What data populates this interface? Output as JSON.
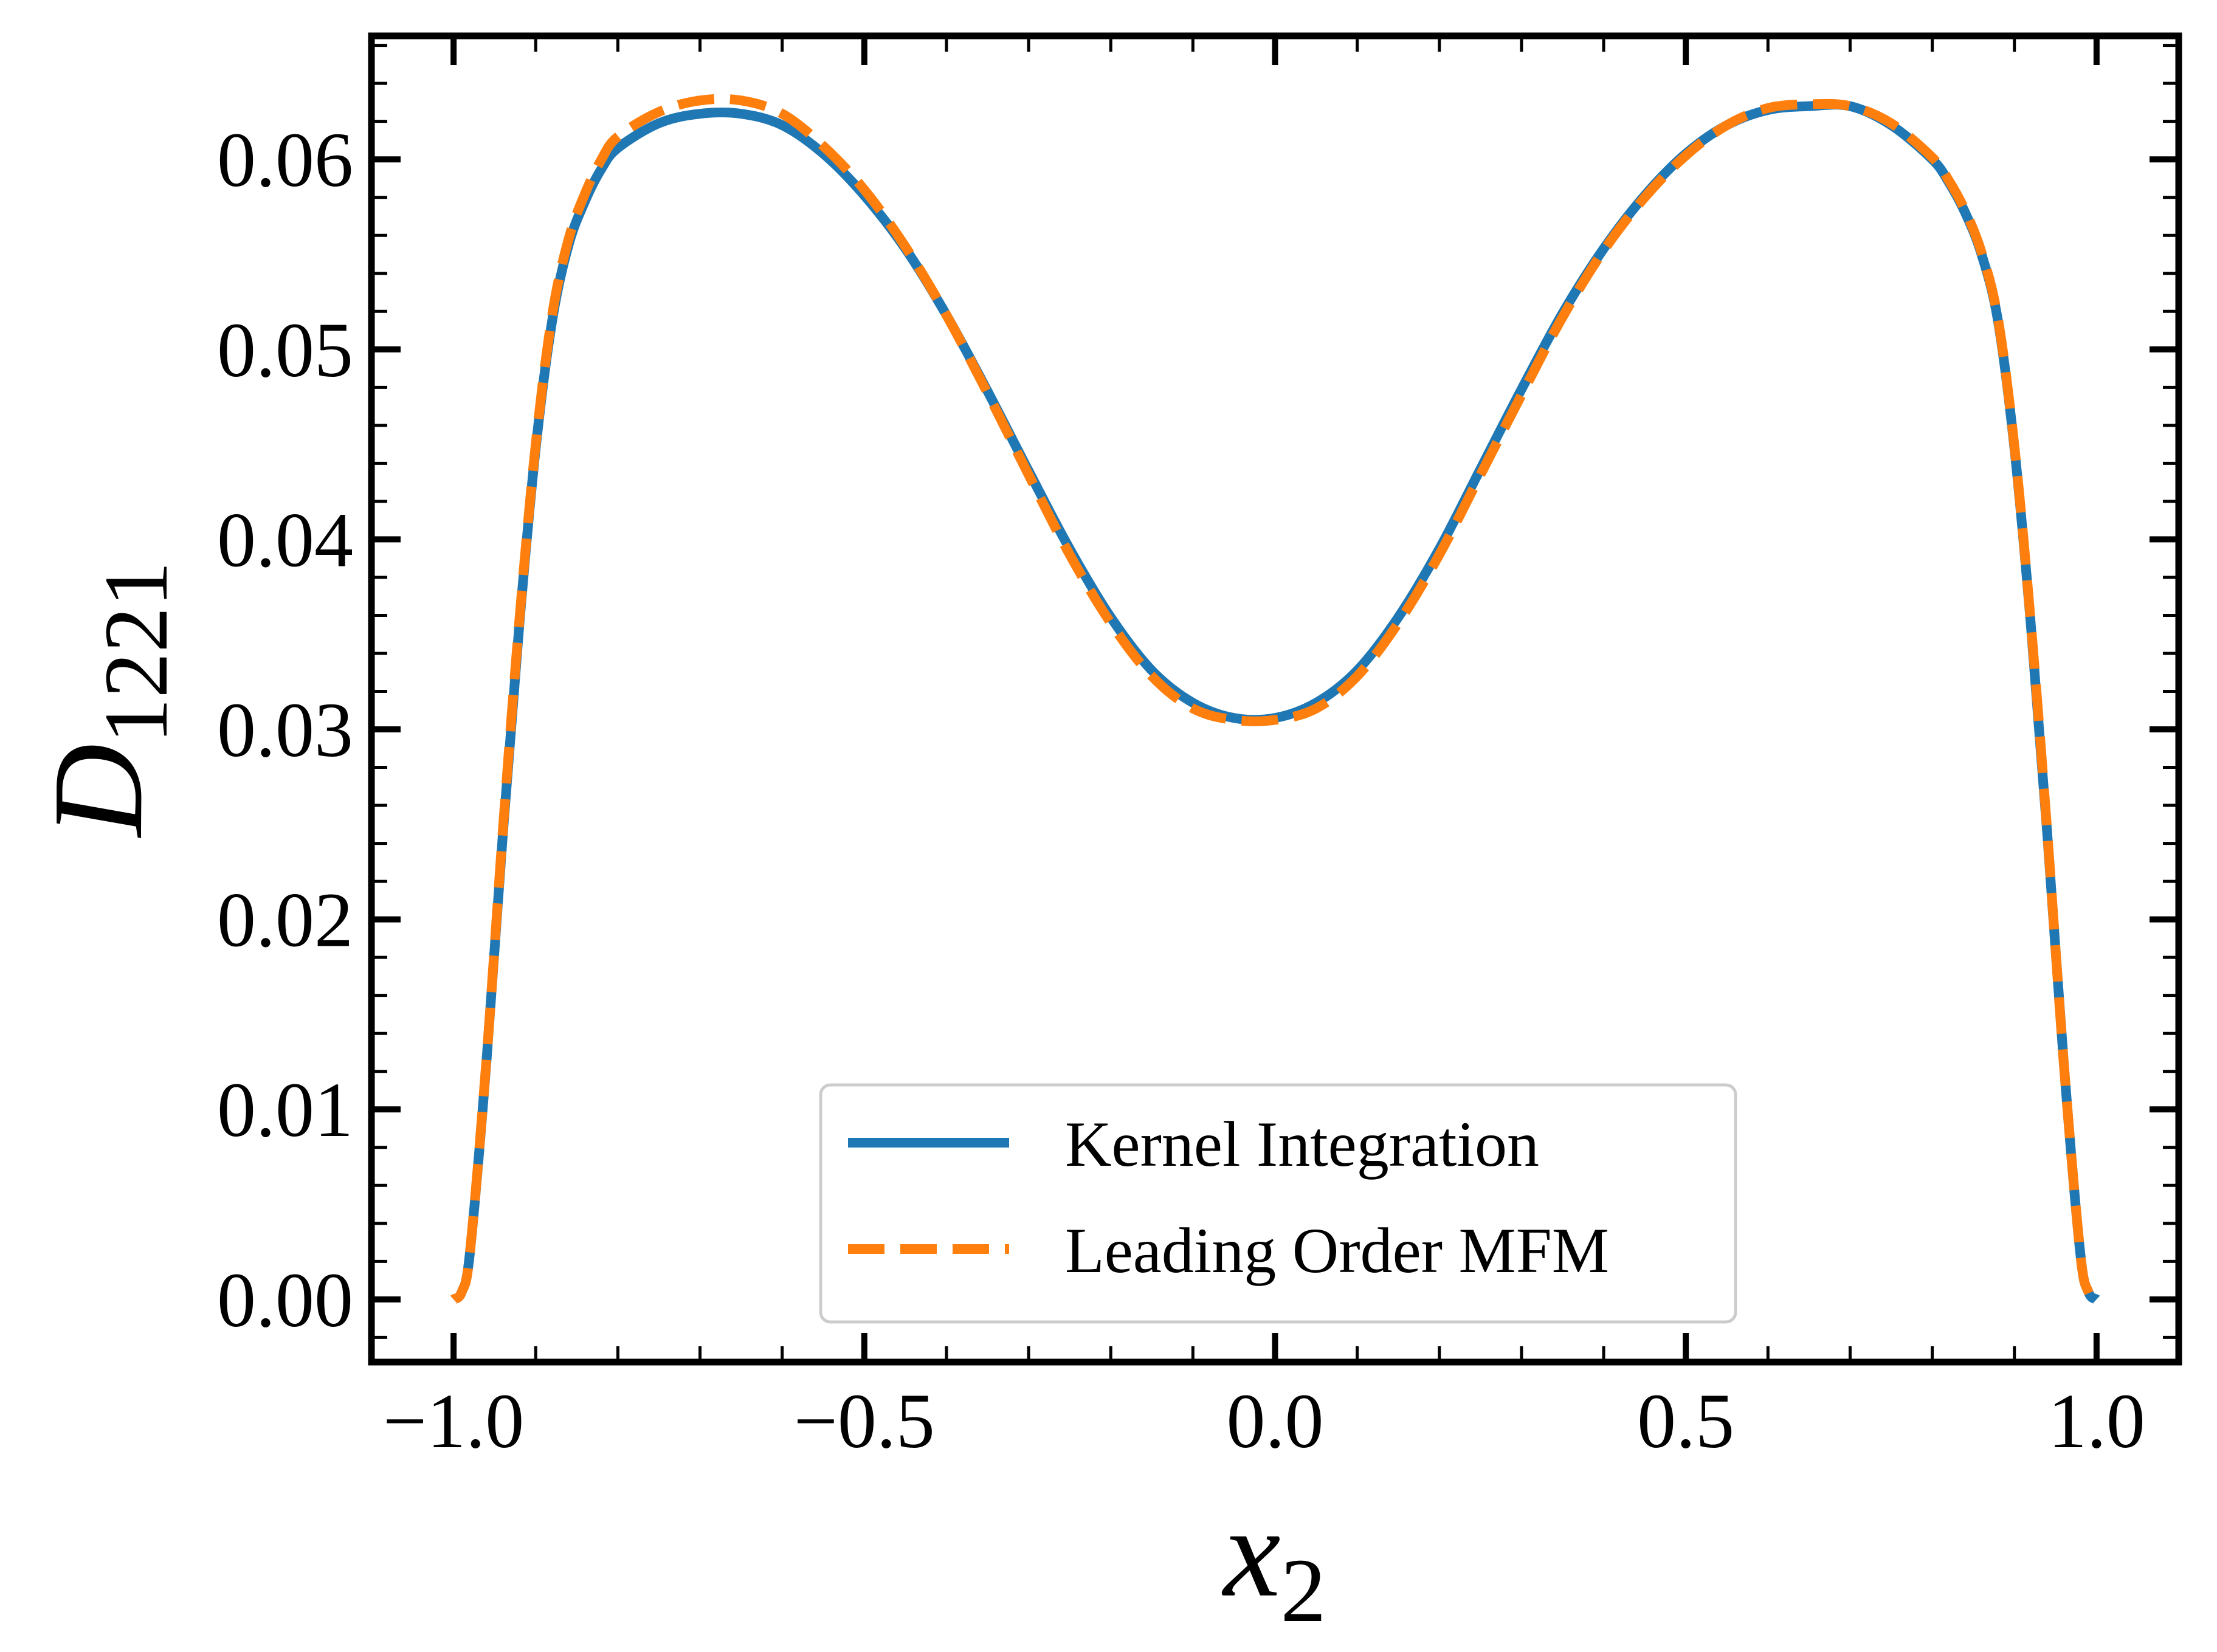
{
  "chart_data": {
    "type": "line",
    "title": "",
    "xlabel": {
      "base": "x",
      "subscript": "2"
    },
    "ylabel": {
      "base": "D",
      "subscript": "1221"
    },
    "xlim": [
      -1.1,
      1.1
    ],
    "ylim": [
      -0.0033,
      0.0665
    ],
    "xticks": [
      -1.0,
      -0.5,
      0.0,
      0.5,
      1.0
    ],
    "xtick_labels": [
      "−1.0",
      "−0.5",
      "0.0",
      "0.5",
      "1.0"
    ],
    "yticks": [
      0.0,
      0.01,
      0.02,
      0.03,
      0.04,
      0.05,
      0.06
    ],
    "ytick_labels": [
      "0.00",
      "0.01",
      "0.02",
      "0.03",
      "0.04",
      "0.05",
      "0.06"
    ],
    "x_minor_step": 0.1,
    "y_minor_step": 0.002,
    "grid": false,
    "legend_position": "lower-center",
    "series": [
      {
        "name": "Kernel Integration",
        "color": "#1f77b4",
        "style": "solid",
        "x": [
          -1.0,
          -0.99,
          -0.98,
          -0.96,
          -0.94,
          -0.92,
          -0.9,
          -0.88,
          -0.86,
          -0.84,
          -0.82,
          -0.8,
          -0.75,
          -0.7,
          -0.65,
          -0.6,
          -0.55,
          -0.5,
          -0.45,
          -0.4,
          -0.35,
          -0.3,
          -0.25,
          -0.2,
          -0.15,
          -0.1,
          -0.05,
          0.0,
          0.05,
          0.1,
          0.15,
          0.2,
          0.25,
          0.3,
          0.35,
          0.4,
          0.45,
          0.5,
          0.55,
          0.6,
          0.65,
          0.7,
          0.75,
          0.8,
          0.82,
          0.84,
          0.86,
          0.88,
          0.9,
          0.92,
          0.94,
          0.96,
          0.98,
          0.99,
          1.0
        ],
        "y": [
          0.0,
          0.0004,
          0.0025,
          0.0125,
          0.0245,
          0.0355,
          0.0448,
          0.0515,
          0.0555,
          0.0578,
          0.0595,
          0.0606,
          0.0619,
          0.0624,
          0.0624,
          0.0618,
          0.0603,
          0.0581,
          0.0553,
          0.0518,
          0.0478,
          0.0436,
          0.0395,
          0.0359,
          0.0331,
          0.0314,
          0.0306,
          0.0306,
          0.0314,
          0.0331,
          0.0359,
          0.0395,
          0.0437,
          0.0479,
          0.0519,
          0.0553,
          0.0581,
          0.0603,
          0.0618,
          0.0626,
          0.0628,
          0.0628,
          0.0618,
          0.06,
          0.0588,
          0.0572,
          0.055,
          0.0515,
          0.0448,
          0.0355,
          0.0245,
          0.0125,
          0.0025,
          0.0004,
          0.0
        ]
      },
      {
        "name": "Leading Order MFM",
        "color": "#ff7f0e",
        "style": "dashed",
        "x": [
          -1.0,
          -0.99,
          -0.98,
          -0.96,
          -0.94,
          -0.92,
          -0.9,
          -0.88,
          -0.86,
          -0.84,
          -0.82,
          -0.8,
          -0.75,
          -0.7,
          -0.65,
          -0.6,
          -0.55,
          -0.5,
          -0.45,
          -0.4,
          -0.35,
          -0.3,
          -0.25,
          -0.2,
          -0.15,
          -0.1,
          -0.05,
          0.0,
          0.05,
          0.1,
          0.15,
          0.2,
          0.25,
          0.3,
          0.35,
          0.4,
          0.45,
          0.5,
          0.55,
          0.6,
          0.65,
          0.7,
          0.75,
          0.8,
          0.82,
          0.84,
          0.86,
          0.88,
          0.9,
          0.92,
          0.94,
          0.96,
          0.98,
          0.99,
          1.0
        ],
        "y": [
          0.0,
          0.0004,
          0.0025,
          0.0126,
          0.0247,
          0.0357,
          0.045,
          0.0518,
          0.0558,
          0.0582,
          0.06,
          0.0612,
          0.0625,
          0.0631,
          0.0631,
          0.0624,
          0.0607,
          0.0584,
          0.0554,
          0.0518,
          0.0477,
          0.0434,
          0.0392,
          0.0356,
          0.0328,
          0.0311,
          0.0305,
          0.0305,
          0.0311,
          0.0328,
          0.0356,
          0.0392,
          0.0434,
          0.0476,
          0.0517,
          0.0552,
          0.058,
          0.0602,
          0.0618,
          0.0627,
          0.0629,
          0.0628,
          0.0619,
          0.0601,
          0.0589,
          0.0573,
          0.0551,
          0.0516,
          0.0449,
          0.0356,
          0.0246,
          0.0125,
          0.0025,
          0.0004,
          0.0
        ]
      }
    ]
  }
}
